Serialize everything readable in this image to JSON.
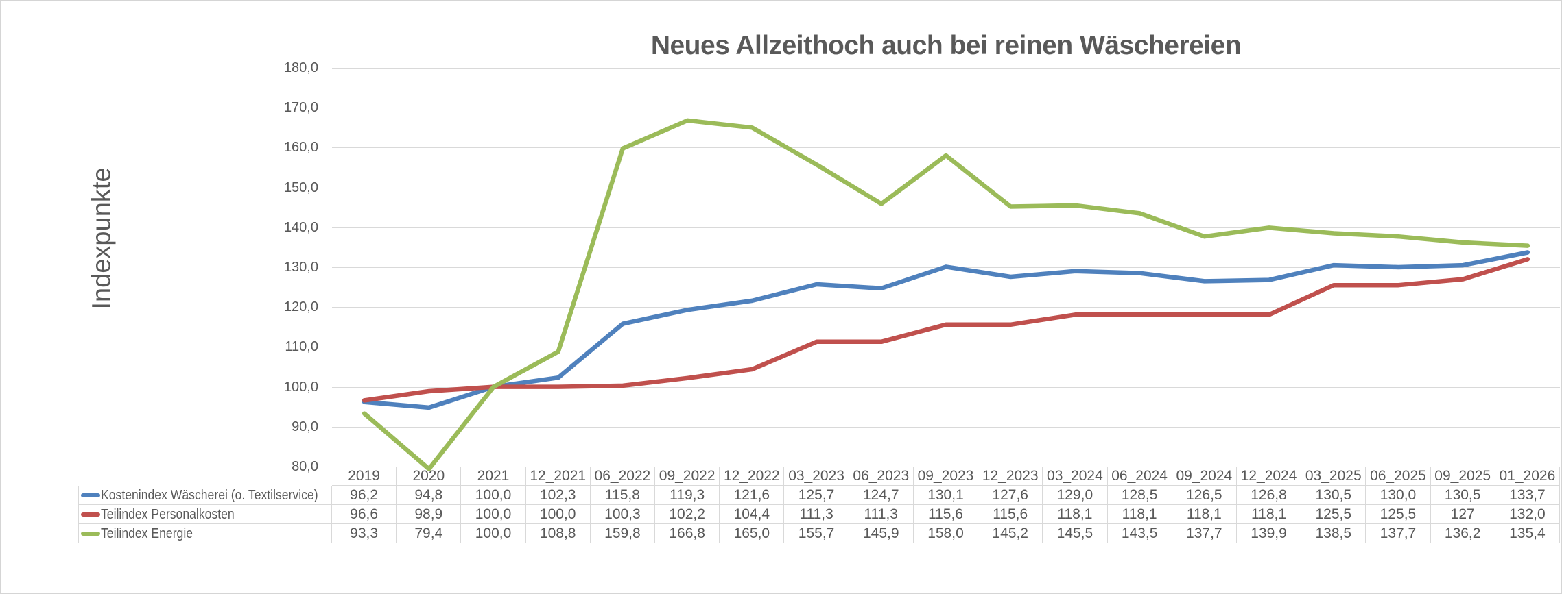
{
  "chart_data": {
    "type": "line",
    "title": "Neues Allzeithoch auch bei reinen Wäschereien",
    "ylabel": "Indexpunkte",
    "xlabel": "",
    "ylim": [
      80,
      180
    ],
    "ytick_step": 10,
    "ytick_labels": [
      "180,0",
      "170,0",
      "160,0",
      "150,0",
      "140,0",
      "130,0",
      "120,0",
      "110,0",
      "100,0",
      "90,0",
      "80,0"
    ],
    "grid": "horizontal",
    "legend_position": "data-table-left",
    "categories": [
      "2019",
      "2020",
      "2021",
      "12_2021",
      "06_2022",
      "09_2022",
      "12_2022",
      "03_2023",
      "06_2023",
      "09_2023",
      "12_2023",
      "03_2024",
      "06_2024",
      "09_2024",
      "12_2024",
      "03_2025",
      "06_2025",
      "09_2025",
      "01_2026"
    ],
    "series": [
      {
        "name": "Kostenindex Wäscherei (o. Textilservice)",
        "color": "#4F81BD",
        "values": [
          96.2,
          94.8,
          100.0,
          102.3,
          115.8,
          119.3,
          121.6,
          125.7,
          124.7,
          130.1,
          127.6,
          129.0,
          128.5,
          126.5,
          126.8,
          130.5,
          130.0,
          130.5,
          133.7
        ],
        "display": [
          "96,2",
          "94,8",
          "100,0",
          "102,3",
          "115,8",
          "119,3",
          "121,6",
          "125,7",
          "124,7",
          "130,1",
          "127,6",
          "129,0",
          "128,5",
          "126,5",
          "126,8",
          "130,5",
          "130,0",
          "130,5",
          "133,7"
        ]
      },
      {
        "name": "Teilindex Personalkosten",
        "color": "#C0504D",
        "values": [
          96.6,
          98.9,
          100.0,
          100.0,
          100.3,
          102.2,
          104.4,
          111.3,
          111.3,
          115.6,
          115.6,
          118.1,
          118.1,
          118.1,
          118.1,
          125.5,
          125.5,
          127,
          132.0
        ],
        "display": [
          "96,6",
          "98,9",
          "100,0",
          "100,0",
          "100,3",
          "102,2",
          "104,4",
          "111,3",
          "111,3",
          "115,6",
          "115,6",
          "118,1",
          "118,1",
          "118,1",
          "118,1",
          "125,5",
          "125,5",
          "127",
          "132,0"
        ]
      },
      {
        "name": "Teilindex Energie",
        "color": "#9BBB59",
        "values": [
          93.3,
          79.4,
          100.0,
          108.8,
          159.8,
          166.8,
          165.0,
          155.7,
          145.9,
          158.0,
          145.2,
          145.5,
          143.5,
          137.7,
          139.9,
          138.5,
          137.7,
          136.2,
          135.4
        ],
        "display": [
          "93,3",
          "79,4",
          "100,0",
          "108,8",
          "159,8",
          "166,8",
          "165,0",
          "155,7",
          "145,9",
          "158,0",
          "145,2",
          "145,5",
          "143,5",
          "137,7",
          "139,9",
          "138,5",
          "137,7",
          "136,2",
          "135,4"
        ]
      }
    ]
  },
  "colors": {
    "text": "#595959",
    "grid": "#D9D9D9",
    "table_border": "#D9D9D9",
    "chart_border": "#D5D5D5",
    "background": "#FFFFFF"
  }
}
